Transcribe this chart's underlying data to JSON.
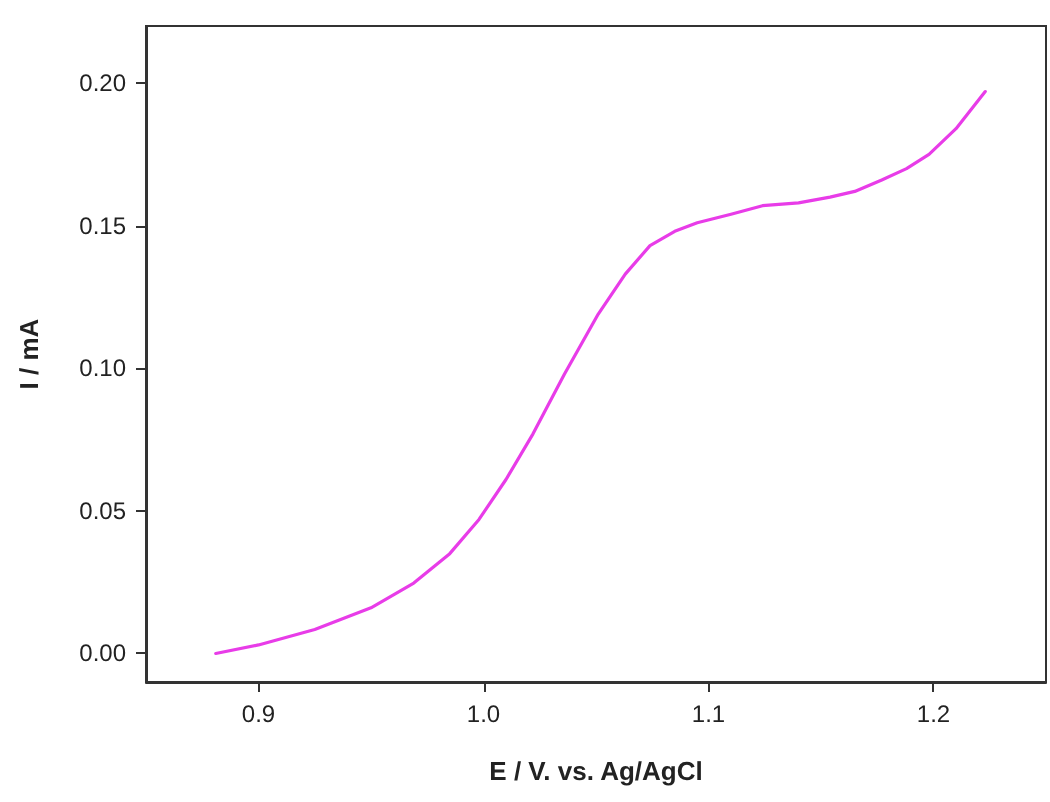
{
  "chart_data": {
    "type": "line",
    "xlabel": "E / V. vs. Ag/AgCl",
    "ylabel": "I / mA",
    "xlim": [
      0.85,
      1.25
    ],
    "xticks": [
      0.9,
      {
        "value": 1,
        "label": "1.0"
      },
      1.1,
      1.2
    ],
    "ylim": [
      -0.01,
      0.22
    ],
    "yticks": [
      {
        "value": 0,
        "label": "0.00"
      },
      0.05,
      {
        "value": 0.1,
        "label": "0.10"
      },
      0.15,
      {
        "value": 0.2,
        "label": "0.20"
      }
    ],
    "grid": false,
    "marker": "none",
    "line_style": "solid",
    "series": [
      {
        "color": "#e83ce8",
        "x": [
          0.881,
          0.9,
          0.925,
          0.95,
          0.969,
          0.985,
          0.998,
          1.01,
          1.022,
          1.036,
          1.051,
          1.063,
          1.074,
          1.085,
          1.095,
          1.11,
          1.124,
          1.14,
          1.154,
          1.165,
          1.177,
          1.188,
          1.198,
          1.21,
          1.223
        ],
        "values": [
          0,
          0.003,
          0.0084,
          0.016,
          0.0247,
          0.035,
          0.047,
          0.061,
          0.077,
          0.098,
          0.119,
          0.133,
          0.143,
          0.148,
          0.151,
          0.154,
          0.157,
          0.158,
          0.16,
          0.162,
          0.166,
          0.17,
          0.175,
          0.184,
          0.197
        ]
      }
    ]
  }
}
